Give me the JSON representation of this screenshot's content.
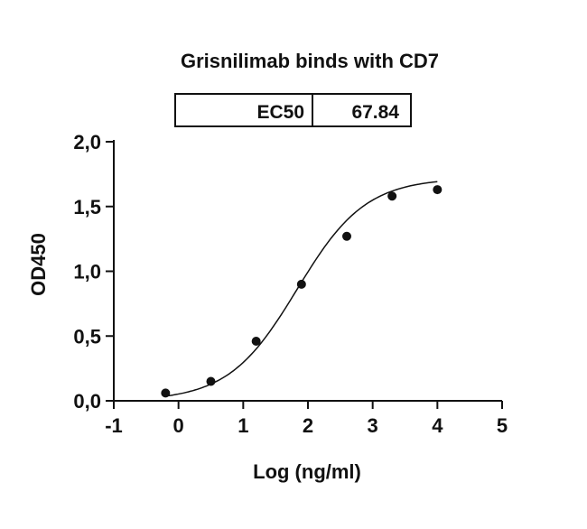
{
  "chart_data": {
    "type": "scatter",
    "title": "Grisnilimab binds with CD7",
    "xlabel": "Log (ng/ml)",
    "ylabel": "OD450",
    "xlim": [
      -1,
      5
    ],
    "ylim": [
      0,
      2.0
    ],
    "x_ticks": [
      "-1",
      "0",
      "1",
      "2",
      "3",
      "4",
      "5"
    ],
    "y_ticks": [
      "0,0",
      "0,5",
      "1,0",
      "1,5",
      "2,0"
    ],
    "grid": false,
    "legend": "none",
    "annotation_table": {
      "label": "EC50",
      "value": "67.84"
    },
    "series": [
      {
        "x": [
          -0.2,
          0.5,
          1.2,
          1.9,
          2.6,
          3.3,
          4.0
        ],
        "y": [
          0.06,
          0.15,
          0.46,
          0.9,
          1.27,
          1.58,
          1.63
        ],
        "fit": "four-parameter logistic"
      }
    ],
    "colors": {
      "points": "#111111",
      "line": "#111111"
    }
  }
}
